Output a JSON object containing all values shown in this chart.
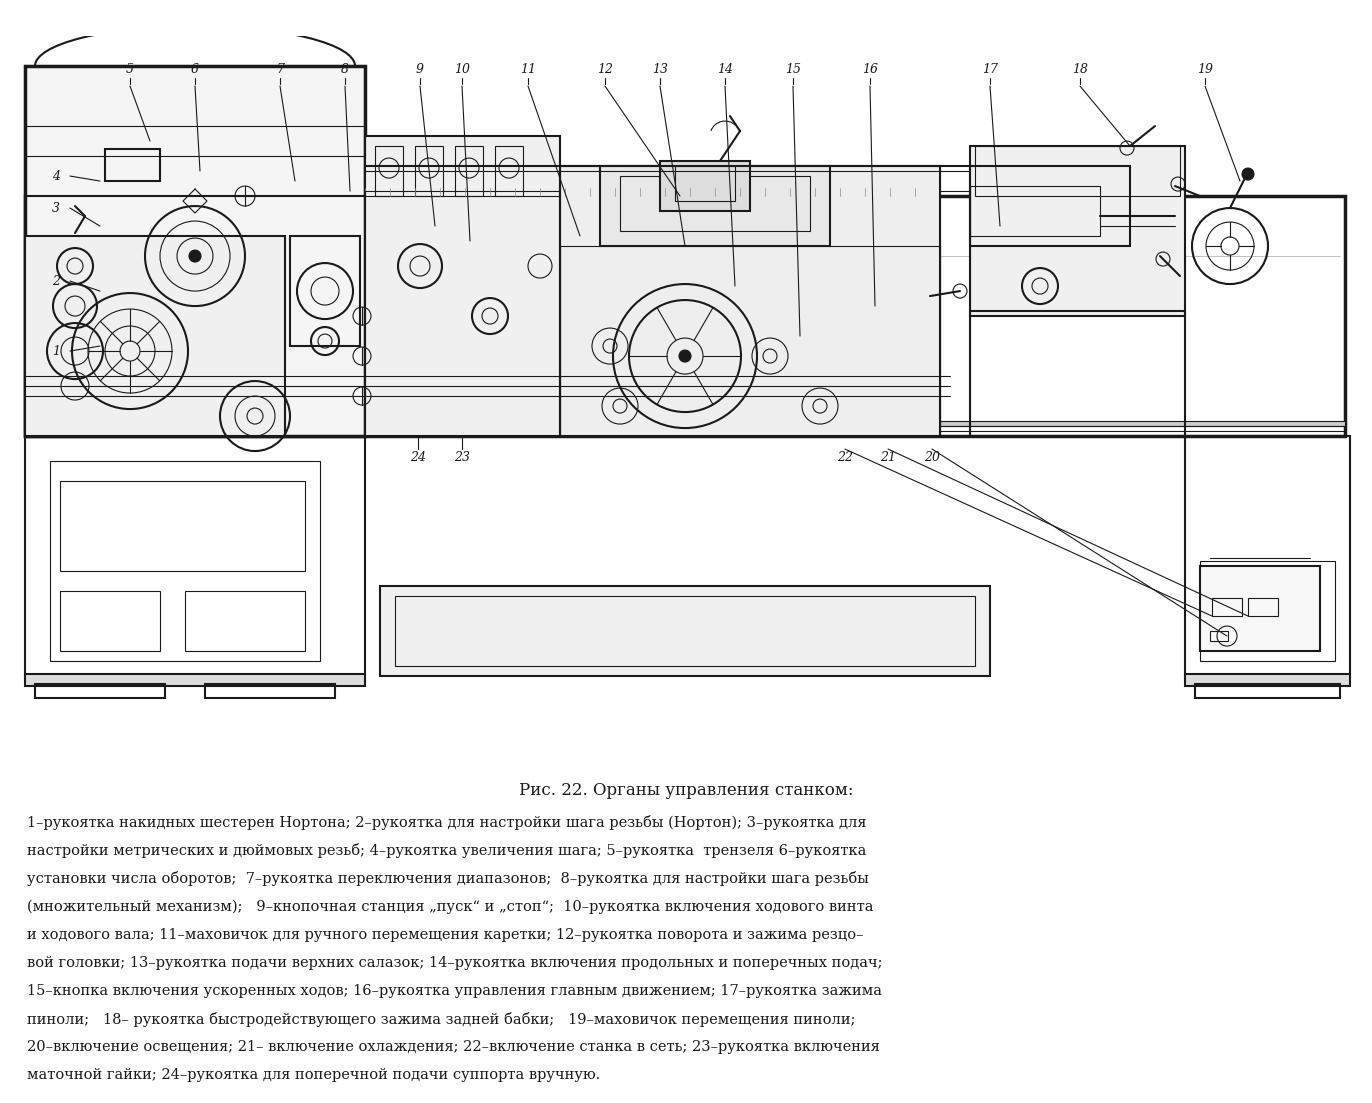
{
  "figure_width": 13.72,
  "figure_height": 11.03,
  "dpi": 100,
  "bg_color": "#ffffff",
  "drawing_color": "#1a1a1a",
  "caption_title": "Рис. 22. Органы управления станком:",
  "caption_title_fontsize": 12,
  "caption_body_fontsize": 10.5,
  "caption_lines": [
    "1–рукоятка накидных шестерен Нортона; 2–рукоятка для настройки шага резьбы (Нортон); 3–рукоятка для",
    "настройки метрических и дюймовых резьб; 4–рукоятка увеличения шага; 5–рукоятка  трензеля 6–рукоятка",
    "установки числа оборотов;  7–рукоятка переключения диапазонов;  8–рукоятка для настройки шага резьбы",
    "(множительный механизм);   9–кнопочная станция „пуск“ и „стоп“;  10–рукоятка включения ходового винта",
    "и ходового вала; 11–маховичок для ручного перемещения каретки; 12–рукоятка поворота и зажима резцо–",
    "вой головки; 13–рукоятка подачи верхних салазок; 14–рукоятка включения продольных и поперечных подач;",
    "15–кнопка включения ускоренных ходов; 16–рукоятка управления главным движением; 17–рукоятка зажима",
    "пиноли;   18– рукоятка быстродействующего зажима задней бабки;   19–маховичок перемещения пиноли;",
    "20–включение освещения; 21– включение охлаждения; 22–включение станка в сеть; 23–рукоятка включения",
    "маточной гайки; 24–рукоятка для поперечной подачи суппорта вручную."
  ]
}
